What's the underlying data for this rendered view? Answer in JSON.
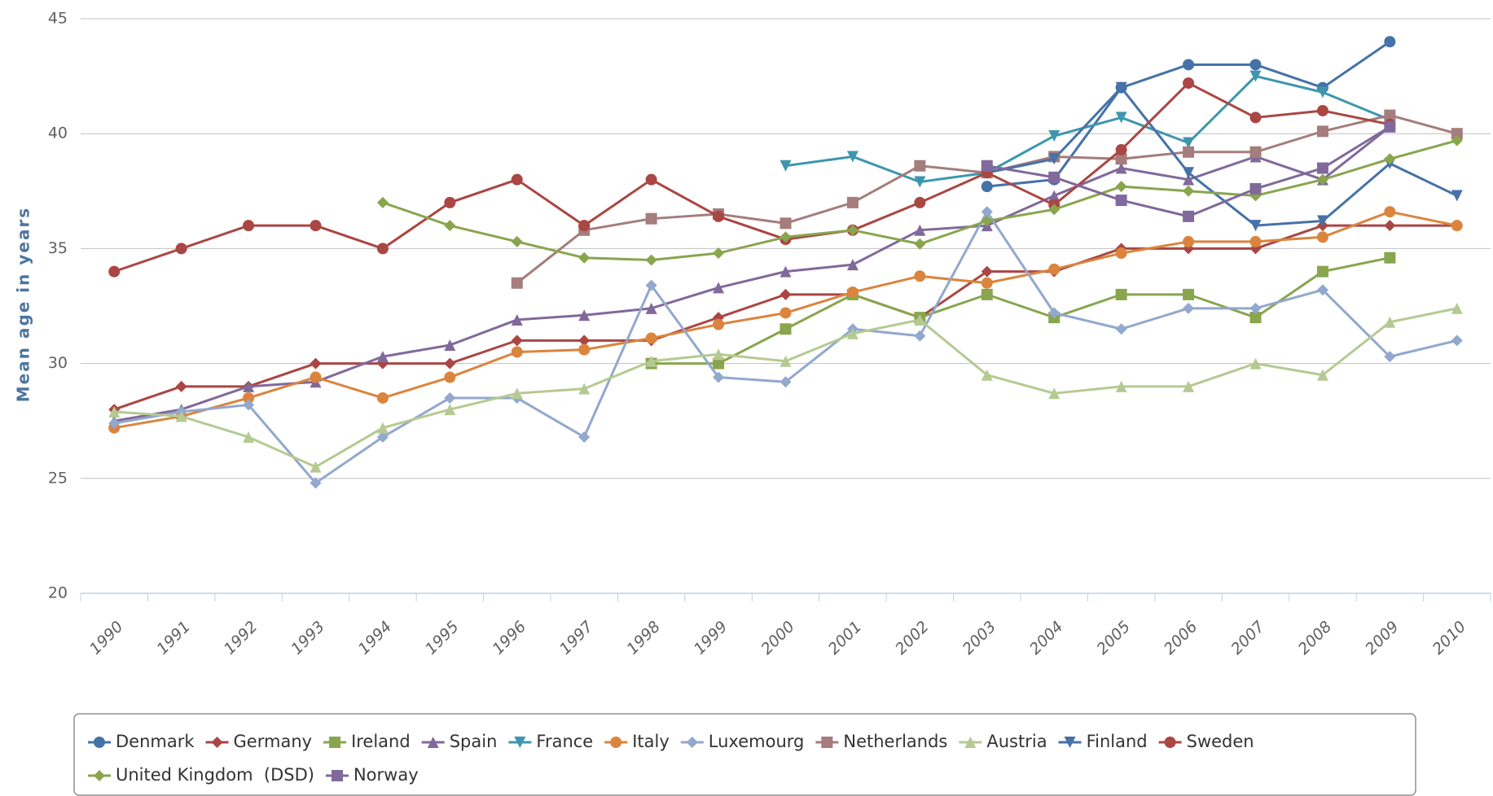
{
  "chart_data": {
    "type": "line",
    "yaxis_title": "Mean age in years",
    "categories": [
      "1990",
      "1991",
      "1992",
      "1993",
      "1994",
      "1995",
      "1996",
      "1997",
      "1998",
      "1999",
      "2000",
      "2001",
      "2002",
      "2003",
      "2004",
      "2005",
      "2006",
      "2007",
      "2008",
      "2009",
      "2010"
    ],
    "ylim": [
      20,
      45
    ],
    "yticks": [
      20,
      25,
      30,
      35,
      40,
      45
    ],
    "grid": true,
    "series": [
      {
        "name": "Denmark",
        "color": "#4572a7",
        "marker": "circle",
        "values": [
          null,
          null,
          null,
          null,
          null,
          null,
          null,
          null,
          null,
          null,
          null,
          null,
          null,
          37.7,
          38,
          42,
          43,
          43,
          42,
          44,
          null
        ]
      },
      {
        "name": "Germany",
        "color": "#aa4643",
        "marker": "diamond",
        "values": [
          28,
          29,
          29,
          30,
          30,
          30,
          31,
          31,
          31,
          32,
          33,
          33,
          32,
          34,
          34,
          35,
          35,
          35,
          36,
          36,
          36
        ]
      },
      {
        "name": "Ireland",
        "color": "#89a54e",
        "marker": "square",
        "values": [
          null,
          null,
          null,
          null,
          null,
          null,
          null,
          null,
          30,
          30,
          31.5,
          33,
          32,
          33,
          32,
          33,
          33,
          32,
          34,
          34.6,
          null
        ]
      },
      {
        "name": "Spain",
        "color": "#80699b",
        "marker": "triangle",
        "values": [
          27.5,
          28,
          29,
          29.2,
          30.3,
          30.8,
          31.9,
          32.1,
          32.4,
          33.3,
          34,
          34.3,
          35.8,
          36,
          37.3,
          38.5,
          38,
          39,
          38,
          40.3,
          null
        ]
      },
      {
        "name": "France",
        "color": "#3d96ae",
        "marker": "triangle-down",
        "values": [
          null,
          null,
          null,
          null,
          null,
          null,
          null,
          null,
          null,
          null,
          38.6,
          39,
          37.9,
          38.3,
          39.9,
          40.7,
          39.6,
          42.5,
          41.8,
          40.6,
          null
        ]
      },
      {
        "name": "Italy",
        "color": "#db843d",
        "marker": "circle",
        "values": [
          27.2,
          27.7,
          28.5,
          29.4,
          28.5,
          29.4,
          30.5,
          30.6,
          31.1,
          31.7,
          32.2,
          33.1,
          33.8,
          33.5,
          34.1,
          34.8,
          35.3,
          35.3,
          35.5,
          36.6,
          36
        ]
      },
      {
        "name": "Luxemourg",
        "color": "#92a8cd",
        "marker": "diamond",
        "values": [
          27.4,
          27.9,
          28.2,
          24.8,
          26.8,
          28.5,
          28.5,
          26.8,
          33.4,
          29.4,
          29.2,
          31.5,
          31.2,
          36.6,
          32.2,
          31.5,
          32.4,
          32.4,
          33.2,
          30.3,
          31
        ]
      },
      {
        "name": "Netherlands",
        "color": "#a47d7c",
        "marker": "square",
        "values": [
          null,
          null,
          null,
          null,
          null,
          null,
          33.5,
          35.8,
          36.3,
          36.5,
          36.1,
          37,
          38.6,
          38.3,
          39,
          38.9,
          39.2,
          39.2,
          40.1,
          40.8,
          40
        ]
      },
      {
        "name": "Austria",
        "color": "#b5ca92",
        "marker": "triangle",
        "values": [
          27.9,
          27.7,
          26.8,
          25.5,
          27.2,
          28,
          28.7,
          28.9,
          30.1,
          30.4,
          30.1,
          31.3,
          31.9,
          29.5,
          28.7,
          29,
          29,
          30,
          29.5,
          31.8,
          32.4
        ]
      },
      {
        "name": "Finland",
        "color": "#4572a7",
        "marker": "triangle-down",
        "values": [
          null,
          null,
          null,
          null,
          null,
          null,
          null,
          null,
          null,
          null,
          null,
          null,
          null,
          38.3,
          38.9,
          42,
          38.3,
          36,
          36.2,
          38.7,
          37.3
        ]
      },
      {
        "name": "Sweden",
        "color": "#aa4643",
        "marker": "circle",
        "values": [
          34,
          35,
          36,
          36,
          35,
          37,
          38,
          36,
          38,
          36.4,
          35.4,
          35.8,
          37,
          38.3,
          36.9,
          39.3,
          42.2,
          40.7,
          41,
          40.4,
          null
        ]
      },
      {
        "name": "United Kingdom  (DSD)",
        "color": "#89a54e",
        "marker": "diamond",
        "values": [
          null,
          null,
          null,
          null,
          37,
          36,
          35.3,
          34.6,
          34.5,
          34.8,
          35.5,
          35.8,
          35.2,
          36.2,
          36.7,
          37.7,
          37.5,
          37.3,
          38,
          38.9,
          39.7
        ]
      },
      {
        "name": "Norway",
        "color": "#80699b",
        "marker": "square",
        "values": [
          null,
          null,
          null,
          null,
          null,
          null,
          null,
          null,
          null,
          null,
          null,
          null,
          null,
          38.6,
          38.1,
          37.1,
          36.4,
          37.6,
          38.5,
          40.3,
          null
        ]
      }
    ]
  }
}
